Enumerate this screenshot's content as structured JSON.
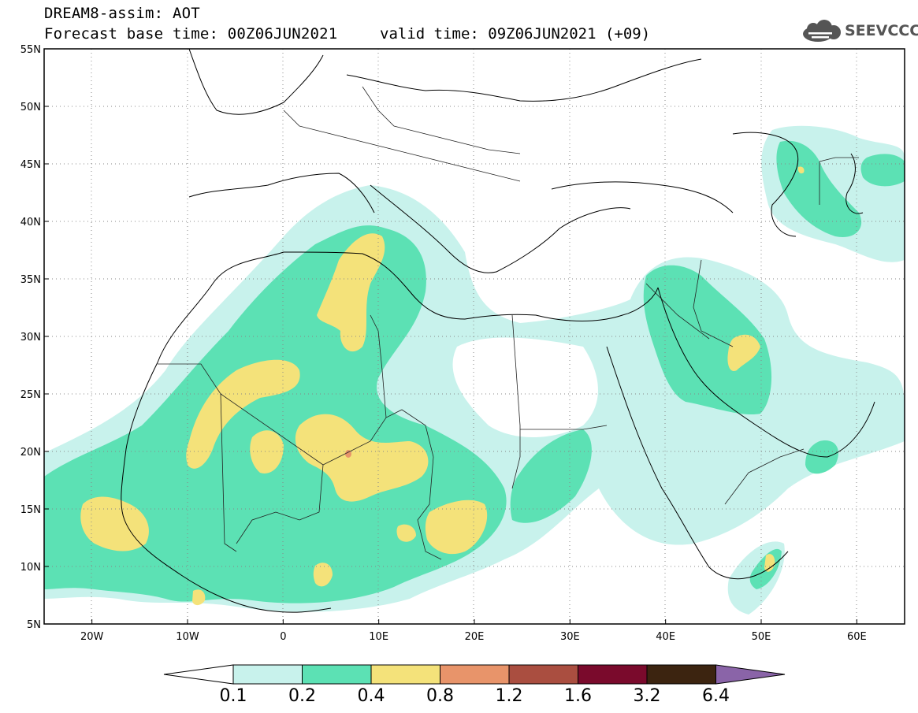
{
  "header": {
    "line1": "DREAM8-assim: AOT",
    "line2_base": "Forecast base time: 00Z06JUN2021",
    "line2_valid": "valid time: 09Z06JUN2021 (+09)"
  },
  "logo": {
    "text": "SEEVCCC",
    "icon": "cloud-logo-icon"
  },
  "map": {
    "lon_range": [
      -25,
      65
    ],
    "lat_range": [
      5,
      55
    ],
    "lat_ticks": [
      "55N",
      "50N",
      "45N",
      "40N",
      "35N",
      "30N",
      "25N",
      "20N",
      "15N",
      "10N",
      "5N"
    ],
    "lon_ticks": [
      "20W",
      "10W",
      "0",
      "10E",
      "20E",
      "30E",
      "40E",
      "50E",
      "60E"
    ],
    "grid": "dotted"
  },
  "colorbar": {
    "labels": [
      "0.1",
      "0.2",
      "0.4",
      "0.8",
      "1.2",
      "1.6",
      "3.2",
      "6.4"
    ],
    "colors": [
      "#ffffff",
      "#c8f2ec",
      "#5ce1b4",
      "#f4e27a",
      "#e8946a",
      "#aa4e40",
      "#7a0a2c",
      "#3c2410",
      "#8a64a8"
    ]
  }
}
